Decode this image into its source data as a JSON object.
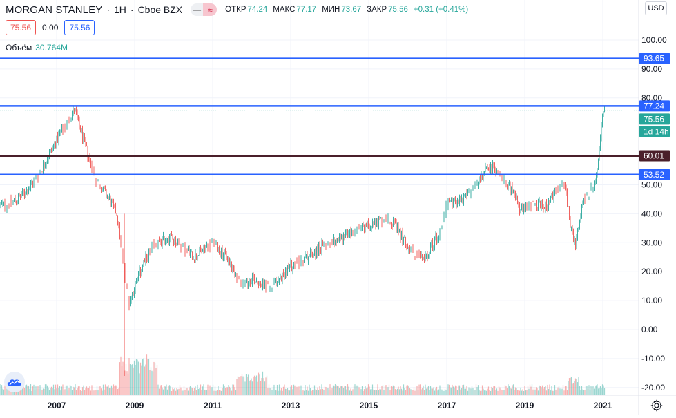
{
  "header": {
    "symbol": "MORGAN STANLEY",
    "interval": "1H",
    "exchange": "Cboe BZX",
    "ohlc": {
      "open_label": "ОТКР",
      "open": "74.24",
      "high_label": "МАКС",
      "high": "77.17",
      "low_label": "МИН",
      "low": "73.67",
      "close_label": "ЗАКР",
      "close": "75.56",
      "change": "+0.31 (+0.41%)"
    }
  },
  "quote": {
    "sell": "75.56",
    "spread": "0.00",
    "buy": "75.56"
  },
  "volume": {
    "label": "Объём",
    "value": "30.764M"
  },
  "currency": "USD",
  "colors": {
    "up": "#26a69a",
    "down": "#ef5350",
    "line_blue": "#2962ff",
    "line_dark": "#4a1f2a"
  },
  "chart_data": {
    "type": "candlestick",
    "x_ticks": [
      "2007",
      "2009",
      "2011",
      "2013",
      "2015",
      "2017",
      "2019",
      "2021"
    ],
    "y_ticks": [
      "100.00",
      "90.00",
      "80.00",
      "50.00",
      "40.00",
      "30.00",
      "20.00",
      "10.00",
      "0.00",
      "-10.00",
      "-20.00"
    ],
    "ylim": [
      -22,
      109
    ],
    "price_series": [
      {
        "t": 2005.7,
        "c": 43
      },
      {
        "t": 2006.0,
        "c": 45
      },
      {
        "t": 2006.3,
        "c": 49
      },
      {
        "t": 2006.6,
        "c": 55
      },
      {
        "t": 2006.9,
        "c": 63
      },
      {
        "t": 2007.2,
        "c": 70
      },
      {
        "t": 2007.45,
        "c": 76
      },
      {
        "t": 2007.7,
        "c": 65
      },
      {
        "t": 2008.0,
        "c": 52
      },
      {
        "t": 2008.3,
        "c": 46
      },
      {
        "t": 2008.55,
        "c": 40
      },
      {
        "t": 2008.75,
        "c": 18
      },
      {
        "t": 2008.85,
        "c": 9
      },
      {
        "t": 2009.0,
        "c": 15
      },
      {
        "t": 2009.2,
        "c": 22
      },
      {
        "t": 2009.5,
        "c": 29
      },
      {
        "t": 2009.9,
        "c": 32
      },
      {
        "t": 2010.2,
        "c": 29
      },
      {
        "t": 2010.5,
        "c": 25
      },
      {
        "t": 2011.0,
        "c": 30
      },
      {
        "t": 2011.4,
        "c": 24
      },
      {
        "t": 2011.8,
        "c": 15
      },
      {
        "t": 2012.0,
        "c": 18
      },
      {
        "t": 2012.5,
        "c": 14
      },
      {
        "t": 2013.0,
        "c": 22
      },
      {
        "t": 2013.5,
        "c": 26
      },
      {
        "t": 2014.0,
        "c": 30
      },
      {
        "t": 2014.5,
        "c": 33
      },
      {
        "t": 2015.0,
        "c": 36
      },
      {
        "t": 2015.5,
        "c": 39
      },
      {
        "t": 2015.8,
        "c": 33
      },
      {
        "t": 2016.1,
        "c": 27
      },
      {
        "t": 2016.4,
        "c": 24
      },
      {
        "t": 2016.8,
        "c": 33
      },
      {
        "t": 2017.0,
        "c": 43
      },
      {
        "t": 2017.5,
        "c": 46
      },
      {
        "t": 2018.0,
        "c": 55
      },
      {
        "t": 2018.2,
        "c": 56
      },
      {
        "t": 2018.6,
        "c": 50
      },
      {
        "t": 2018.9,
        "c": 41
      },
      {
        "t": 2019.2,
        "c": 43
      },
      {
        "t": 2019.6,
        "c": 43
      },
      {
        "t": 2020.0,
        "c": 52
      },
      {
        "t": 2020.2,
        "c": 34
      },
      {
        "t": 2020.3,
        "c": 29
      },
      {
        "t": 2020.5,
        "c": 44
      },
      {
        "t": 2020.8,
        "c": 50
      },
      {
        "t": 2020.9,
        "c": 60
      },
      {
        "t": 2021.0,
        "c": 75.56
      }
    ],
    "horizontal_lines": [
      {
        "price": 93.65,
        "label": "93.65",
        "color": "#2962ff"
      },
      {
        "price": 77.24,
        "label": "77.24",
        "color": "#2962ff"
      },
      {
        "price": 60.01,
        "label": "60.01",
        "color": "#4a1f2a"
      },
      {
        "price": 53.52,
        "label": "53.52",
        "color": "#2962ff"
      }
    ],
    "last_price": {
      "price": 75.56,
      "label": "75.56",
      "countdown": "1d 14h"
    },
    "grid": true,
    "axis": "right"
  }
}
